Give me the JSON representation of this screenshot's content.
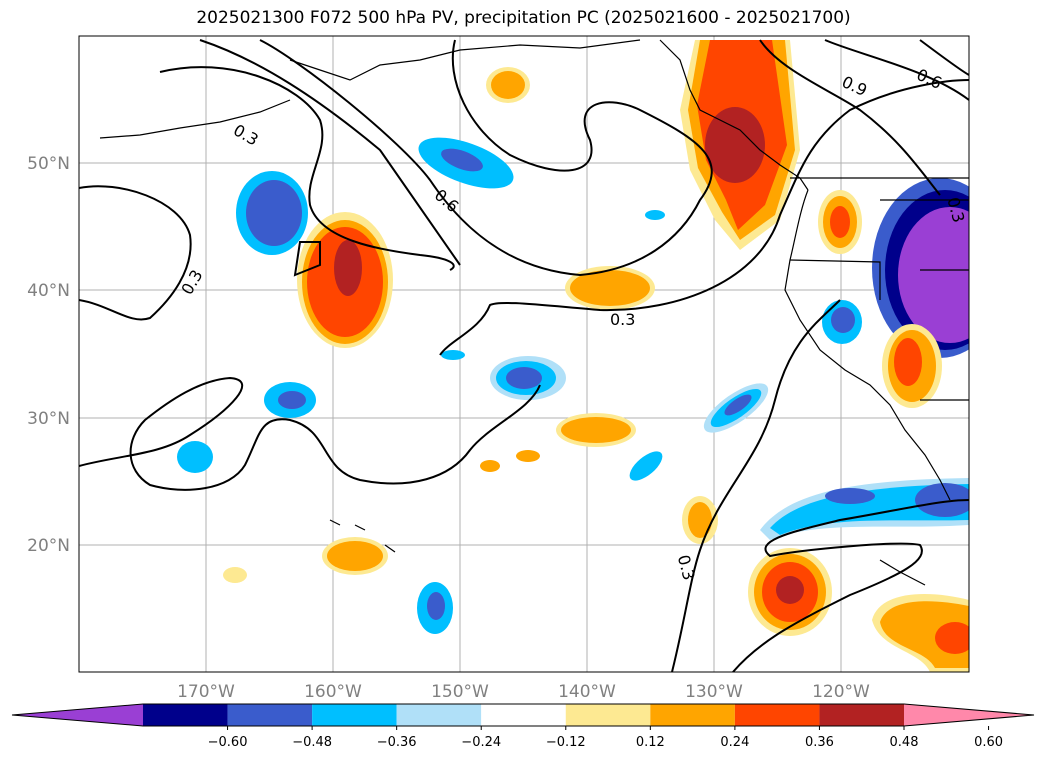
{
  "title": "2025021300 F072 500 hPa PV, precipitation PC (2025021600 - 2025021700)",
  "map": {
    "lon_range": [
      -180,
      -110
    ],
    "lat_range": [
      10,
      60
    ],
    "lon_ticks": [
      "170°W",
      "160°W",
      "150°W",
      "140°W",
      "130°W",
      "120°W"
    ],
    "lat_ticks": [
      "20°N",
      "30°N",
      "40°N",
      "50°N"
    ],
    "gridlines": true,
    "contour_labels": [
      "0.3",
      "0.6",
      "0.9",
      "0.6",
      "0.3",
      "0.3",
      "0.3",
      "0.3"
    ]
  },
  "colorbar": {
    "orientation": "horizontal",
    "extend": "both",
    "ticks": [
      "−0.60",
      "−0.48",
      "−0.36",
      "−0.24",
      "−0.12",
      "0.12",
      "0.24",
      "0.36",
      "0.48",
      "0.60"
    ],
    "colors": [
      "#9a3fd4",
      "#00008b",
      "#3a5ccc",
      "#00bfff",
      "#b0e0f8",
      "#ffffff",
      "#fde992",
      "#ffa500",
      "#ff4500",
      "#b22222",
      "#ff88aa"
    ]
  }
}
